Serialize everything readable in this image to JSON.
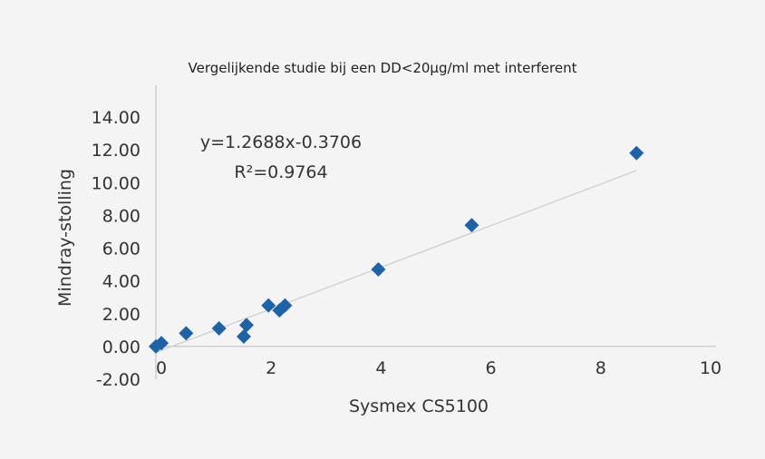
{
  "chart_data": {
    "type": "scatter",
    "title": "Vergelijkende studie bij een DD<20µg/ml met interferent",
    "xlabel": "Sysmex CS5100",
    "ylabel": "Mindray-stolling",
    "xlim": [
      0,
      10
    ],
    "ylim": [
      -2,
      14
    ],
    "x_ticks": [
      "0",
      "2",
      "4",
      "6",
      "8",
      "10"
    ],
    "y_ticks": [
      "14.00",
      "12.00",
      "10.00",
      "8.00",
      "6.00",
      "4.00",
      "2.00",
      "0.00",
      "-2.00"
    ],
    "grid": false,
    "series": [
      {
        "color": "#1f63a7",
        "marker": "diamond",
        "points": [
          {
            "x": 0.0,
            "y": 0.0
          },
          {
            "x": 0.1,
            "y": 0.2
          },
          {
            "x": 0.55,
            "y": 0.8
          },
          {
            "x": 1.15,
            "y": 1.1
          },
          {
            "x": 1.6,
            "y": 0.6
          },
          {
            "x": 1.65,
            "y": 1.3
          },
          {
            "x": 2.05,
            "y": 2.5
          },
          {
            "x": 2.25,
            "y": 2.2
          },
          {
            "x": 2.35,
            "y": 2.5
          },
          {
            "x": 4.05,
            "y": 4.7
          },
          {
            "x": 5.75,
            "y": 7.4
          },
          {
            "x": 8.75,
            "y": 11.8
          }
        ]
      }
    ],
    "trendline": {
      "color": "#cfcfcf",
      "slope": 1.2688,
      "intercept": -0.3706,
      "x_range": [
        0,
        8.75
      ]
    },
    "annotations": [
      "y=1.2688x-0.3706",
      "R²=0.9764"
    ]
  }
}
